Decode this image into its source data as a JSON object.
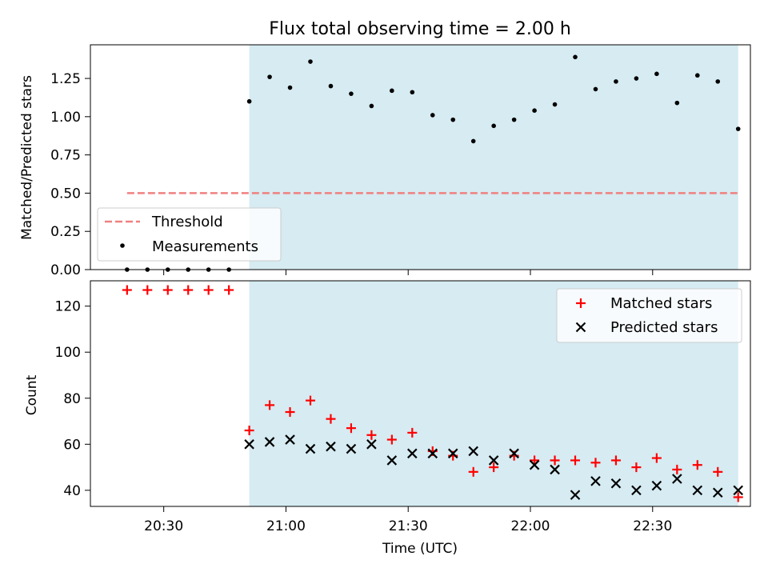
{
  "chart_data": [
    {
      "type": "scatter",
      "title": "Flux total observing time = 2.00 h",
      "xlabel": "",
      "ylabel": "Matched/Predicted stars",
      "ylim": [
        0,
        1.47
      ],
      "yticks": [
        "0.00",
        "0.25",
        "0.50",
        "0.75",
        "1.00",
        "1.25"
      ],
      "ytick_values": [
        0,
        0.25,
        0.5,
        0.75,
        1.0,
        1.25
      ],
      "x_axis": "time (UTC)",
      "shaded_span": [
        "20:51",
        "22:51"
      ],
      "shade_color": "#add8e6",
      "threshold": {
        "name": "Threshold",
        "value": 0.5,
        "x_start": "20:21",
        "x_end": "22:51",
        "color": "#f08080"
      },
      "series": [
        {
          "name": "Measurements",
          "color": "#000000",
          "x": [
            "20:21",
            "20:26",
            "20:31",
            "20:36",
            "20:41",
            "20:46",
            "20:51",
            "20:56",
            "21:01",
            "21:06",
            "21:11",
            "21:16",
            "21:21",
            "21:26",
            "21:31",
            "21:36",
            "21:41",
            "21:46",
            "21:51",
            "21:56",
            "22:01",
            "22:06",
            "22:11",
            "22:16",
            "22:21",
            "22:26",
            "22:31",
            "22:36",
            "22:41",
            "22:46",
            "22:51"
          ],
          "values": [
            0,
            0,
            0,
            0,
            0,
            0,
            1.1,
            1.26,
            1.19,
            1.36,
            1.2,
            1.15,
            1.07,
            1.17,
            1.16,
            1.01,
            0.98,
            0.84,
            0.94,
            0.98,
            1.04,
            1.08,
            1.39,
            1.18,
            1.23,
            1.25,
            1.28,
            1.09,
            1.27,
            1.23,
            0.92
          ]
        }
      ],
      "legend_position": "lower-left",
      "grid": false
    },
    {
      "type": "scatter",
      "title": "",
      "xlabel": "Time (UTC)",
      "ylabel": "Count",
      "ylim": [
        33,
        131
      ],
      "yticks": [
        "40",
        "60",
        "80",
        "100",
        "120"
      ],
      "ytick_values": [
        40,
        60,
        80,
        100,
        120
      ],
      "xlim": [
        "20:12",
        "22:54"
      ],
      "xticks": [
        "20:30",
        "21:00",
        "21:30",
        "22:00",
        "22:30"
      ],
      "shaded_span": [
        "20:51",
        "22:51"
      ],
      "shade_color": "#add8e6",
      "series": [
        {
          "name": "Matched stars",
          "color": "#ff0000",
          "marker": "+",
          "x": [
            "20:21",
            "20:26",
            "20:31",
            "20:36",
            "20:41",
            "20:46",
            "20:51",
            "20:56",
            "21:01",
            "21:06",
            "21:11",
            "21:16",
            "21:21",
            "21:26",
            "21:31",
            "21:36",
            "21:41",
            "21:46",
            "21:51",
            "21:56",
            "22:01",
            "22:06",
            "22:11",
            "22:16",
            "22:21",
            "22:26",
            "22:31",
            "22:36",
            "22:41",
            "22:46",
            "22:51"
          ],
          "values": [
            127,
            127,
            127,
            127,
            127,
            127,
            66,
            77,
            74,
            79,
            71,
            67,
            64,
            62,
            65,
            57,
            55,
            48,
            50,
            55,
            53,
            53,
            53,
            52,
            53,
            50,
            54,
            49,
            51,
            48,
            37
          ]
        },
        {
          "name": "Predicted stars",
          "color": "#000000",
          "marker": "x",
          "x": [
            "20:51",
            "20:56",
            "21:01",
            "21:06",
            "21:11",
            "21:16",
            "21:21",
            "21:26",
            "21:31",
            "21:36",
            "21:41",
            "21:46",
            "21:51",
            "21:56",
            "22:01",
            "22:06",
            "22:11",
            "22:16",
            "22:21",
            "22:26",
            "22:31",
            "22:36",
            "22:41",
            "22:46",
            "22:51"
          ],
          "values": [
            60,
            61,
            62,
            58,
            59,
            58,
            60,
            53,
            56,
            56,
            56,
            57,
            53,
            56,
            51,
            49,
            38,
            44,
            43,
            40,
            42,
            45,
            40,
            39,
            40
          ]
        }
      ],
      "legend_position": "upper-right",
      "grid": false
    }
  ]
}
